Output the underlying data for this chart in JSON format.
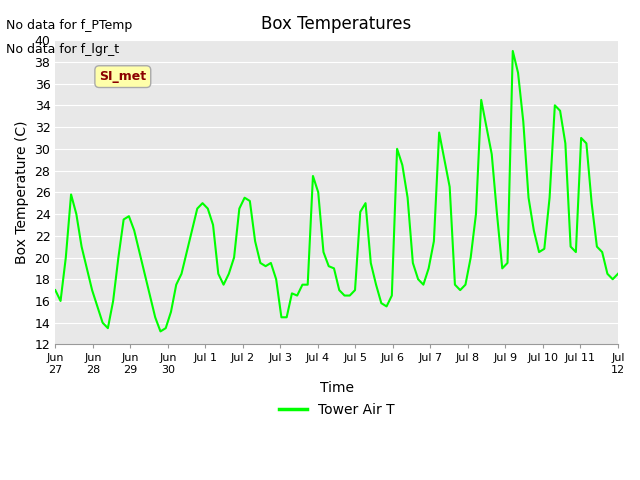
{
  "title": "Box Temperatures",
  "xlabel": "Time",
  "ylabel": "Box Temperature (C)",
  "ylim": [
    12,
    40
  ],
  "yticks": [
    12,
    14,
    16,
    18,
    20,
    22,
    24,
    26,
    28,
    30,
    32,
    34,
    36,
    38,
    40
  ],
  "line_color": "#00FF00",
  "line_width": 1.5,
  "background_color": "#E8E8E8",
  "figure_color": "#FFFFFF",
  "text_annotations": [
    "No data for f_PTemp",
    "No data for f_lgr_t"
  ],
  "legend_label": "Tower Air T",
  "si_met_label": "SI_met",
  "x_tick_labels": [
    "Jun\n27",
    "Jun\n28",
    "Jun\n29",
    "Jun\n30",
    "Jul 1",
    "Jul 2",
    "Jul 3",
    "Jul 4",
    "Jul 5",
    "Jul 6",
    "Jul 7",
    "Jul 8",
    "Jul 9",
    "Jul 10",
    "Jul 11",
    "Jul\n12"
  ],
  "x_tick_positions": [
    0,
    1,
    2,
    3,
    4,
    5,
    6,
    7,
    8,
    9,
    10,
    11,
    12,
    13,
    14,
    15
  ],
  "xlim": [
    0,
    15
  ],
  "temp_values": [
    17.0,
    16.0,
    20.0,
    25.8,
    24.0,
    21.0,
    19.0,
    17.0,
    15.5,
    14.0,
    13.5,
    16.0,
    20.0,
    23.5,
    23.8,
    22.5,
    20.5,
    18.5,
    16.5,
    14.5,
    13.2,
    13.5,
    15.0,
    17.5,
    18.5,
    20.5,
    22.5,
    24.5,
    25.0,
    24.5,
    23.0,
    18.5,
    17.5,
    18.5,
    20.0,
    24.5,
    25.5,
    25.2,
    21.5,
    19.5,
    19.2,
    19.5,
    18.0,
    14.5,
    14.5,
    16.7,
    16.5,
    17.5,
    17.5,
    27.5,
    26.0,
    20.5,
    19.2,
    19.0,
    17.0,
    16.5,
    16.5,
    17.0,
    24.2,
    25.0,
    19.5,
    17.5,
    15.8,
    15.5,
    16.5,
    30.0,
    28.5,
    25.5,
    19.5,
    18.0,
    17.5,
    19.0,
    21.5,
    31.5,
    29.0,
    26.5,
    17.5,
    17.0,
    17.5,
    20.0,
    24.0,
    34.5,
    32.0,
    29.5,
    24.0,
    19.0,
    19.5,
    39.0,
    37.0,
    32.5,
    25.5,
    22.5,
    20.5,
    20.8,
    25.5,
    34.0,
    33.5,
    30.5,
    21.0,
    20.5,
    31.0,
    30.5,
    25.0,
    21.0,
    20.5,
    18.5,
    18.0,
    18.5
  ]
}
